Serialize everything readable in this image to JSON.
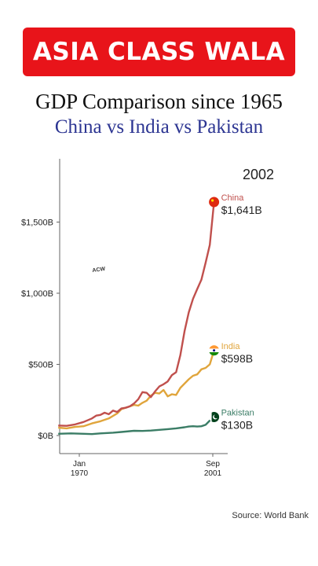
{
  "header": {
    "banner": "ASIA CLASS WALA",
    "title": "GDP Comparison since 1965",
    "subtitle": "China vs India vs Pakistan"
  },
  "watermark": "ACW",
  "source": "Source: World Bank",
  "chart_data": {
    "type": "line",
    "year_label": "2002",
    "ylim": [
      0,
      1800
    ],
    "xlim": [
      1965,
      2002
    ],
    "yticks": [
      {
        "value": 0,
        "label": "$0B"
      },
      {
        "value": 500,
        "label": "$500B"
      },
      {
        "value": 1000,
        "label": "$1,000B"
      },
      {
        "value": 1500,
        "label": "$1,500B"
      }
    ],
    "xticks": [
      {
        "value": 1970,
        "line1": "Jan",
        "line2": "1970"
      },
      {
        "value": 2001.7,
        "line1": "Sep",
        "line2": "2001"
      }
    ],
    "series": [
      {
        "name": "China",
        "color": "#c0504d",
        "value_label": "$1,641B",
        "icon": "china-flag-icon",
        "points": [
          [
            1965,
            70
          ],
          [
            1967,
            68
          ],
          [
            1969,
            78
          ],
          [
            1971,
            95
          ],
          [
            1973,
            120
          ],
          [
            1974,
            140
          ],
          [
            1975,
            145
          ],
          [
            1976,
            160
          ],
          [
            1977,
            150
          ],
          [
            1978,
            175
          ],
          [
            1979,
            165
          ],
          [
            1980,
            190
          ],
          [
            1981,
            195
          ],
          [
            1982,
            205
          ],
          [
            1983,
            225
          ],
          [
            1984,
            255
          ],
          [
            1985,
            305
          ],
          [
            1986,
            300
          ],
          [
            1987,
            270
          ],
          [
            1988,
            310
          ],
          [
            1989,
            345
          ],
          [
            1990,
            360
          ],
          [
            1991,
            380
          ],
          [
            1992,
            425
          ],
          [
            1993,
            445
          ],
          [
            1994,
            565
          ],
          [
            1995,
            735
          ],
          [
            1996,
            865
          ],
          [
            1997,
            960
          ],
          [
            1998,
            1030
          ],
          [
            1999,
            1095
          ],
          [
            2000,
            1215
          ],
          [
            2001,
            1340
          ],
          [
            2002,
            1641
          ]
        ]
      },
      {
        "name": "India",
        "color": "#e0a53c",
        "value_label": "$598B",
        "icon": "india-flag-icon",
        "points": [
          [
            1965,
            55
          ],
          [
            1967,
            50
          ],
          [
            1969,
            60
          ],
          [
            1971,
            65
          ],
          [
            1973,
            85
          ],
          [
            1975,
            100
          ],
          [
            1977,
            120
          ],
          [
            1979,
            155
          ],
          [
            1980,
            185
          ],
          [
            1981,
            195
          ],
          [
            1982,
            205
          ],
          [
            1983,
            215
          ],
          [
            1984,
            210
          ],
          [
            1985,
            230
          ],
          [
            1986,
            245
          ],
          [
            1987,
            280
          ],
          [
            1988,
            300
          ],
          [
            1989,
            295
          ],
          [
            1990,
            320
          ],
          [
            1991,
            275
          ],
          [
            1992,
            290
          ],
          [
            1993,
            285
          ],
          [
            1994,
            335
          ],
          [
            1995,
            365
          ],
          [
            1996,
            395
          ],
          [
            1997,
            420
          ],
          [
            1998,
            430
          ],
          [
            1999,
            465
          ],
          [
            2000,
            475
          ],
          [
            2001,
            500
          ],
          [
            2002,
            598
          ]
        ]
      },
      {
        "name": "Pakistan",
        "color": "#3b7d66",
        "value_label": "$130B",
        "icon": "pakistan-flag-icon",
        "points": [
          [
            1965,
            12
          ],
          [
            1968,
            15
          ],
          [
            1971,
            12
          ],
          [
            1973,
            10
          ],
          [
            1975,
            15
          ],
          [
            1978,
            20
          ],
          [
            1980,
            25
          ],
          [
            1983,
            33
          ],
          [
            1985,
            32
          ],
          [
            1987,
            35
          ],
          [
            1989,
            40
          ],
          [
            1991,
            45
          ],
          [
            1993,
            50
          ],
          [
            1995,
            58
          ],
          [
            1996,
            63
          ],
          [
            1997,
            65
          ],
          [
            1998,
            63
          ],
          [
            1999,
            65
          ],
          [
            2000,
            75
          ],
          [
            2001,
            105
          ],
          [
            2002,
            130
          ]
        ]
      }
    ]
  }
}
